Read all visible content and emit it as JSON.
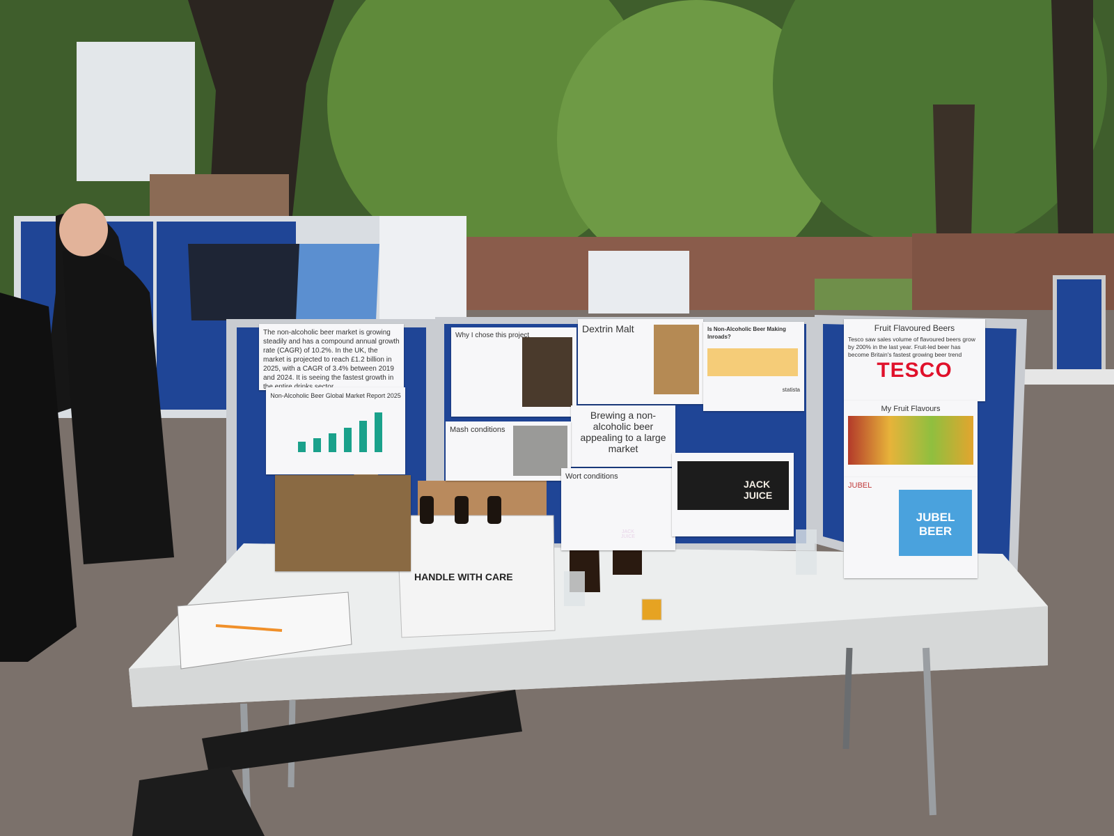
{
  "posters": {
    "market": {
      "text": "The non-alcoholic beer market is growing steadily and has a compound annual growth rate (CAGR) of 10.2%. In the UK, the market is projected to reach £1.2 billion in 2025, with a CAGR of 3.4% between 2019 and 2024. It is seeing the fastest growth in the entire drinks sector.",
      "chart_title": "Non-Alcoholic Beer Global Market Report 2025"
    },
    "why": {
      "title": "Why I chose this project"
    },
    "dextrin": {
      "title": "Dextrin Malt"
    },
    "statista": {
      "title": "Is Non-Alcoholic Beer Making Inroads?",
      "source": "statista"
    },
    "main": {
      "title": "Brewing a non-alcoholic beer appealing to a large market"
    },
    "mash": {
      "title": "Mash conditions"
    },
    "wort": {
      "title": "Wort conditions"
    },
    "fruit": {
      "title": "Fruit Flavoured Beers",
      "text": "Tesco saw sales volume of flavoured beers grow by 200% in the last year. Fruit-led beer has become Britain's fastest growing beer trend",
      "logo": "TESCO",
      "subtitle": "My Fruit Flavours"
    },
    "jubel": {
      "title": "JUBEL",
      "can": "JUBEL BEER"
    },
    "juice": {
      "title": "JACK JUICE"
    }
  },
  "box": {
    "label": "HANDLE WITH CARE"
  },
  "bottle": {
    "label": "JACK JUICE"
  }
}
